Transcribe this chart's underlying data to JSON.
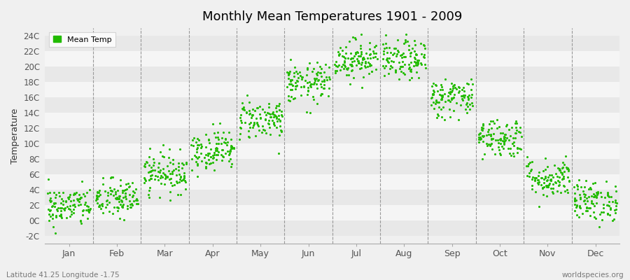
{
  "title": "Monthly Mean Temperatures 1901 - 2009",
  "ylabel": "Temperature",
  "footer_left": "Latitude 41.25 Longitude -1.75",
  "footer_right": "worldspecies.org",
  "legend_label": "Mean Temp",
  "dot_color": "#22bb00",
  "bg_color": "#f0f0f0",
  "plot_bg_color": "#f0f0f0",
  "band_color_light": "#f5f5f5",
  "band_color_dark": "#e8e8e8",
  "ylim": [
    -3.0,
    25.0
  ],
  "yticks": [
    -2,
    0,
    2,
    4,
    6,
    8,
    10,
    12,
    14,
    16,
    18,
    20,
    22,
    24
  ],
  "ytick_labels": [
    "-2C",
    "0C",
    "2C",
    "4C",
    "6C",
    "8C",
    "10C",
    "12C",
    "14C",
    "16C",
    "18C",
    "20C",
    "22C",
    "24C"
  ],
  "month_labels": [
    "Jan",
    "Feb",
    "Mar",
    "Apr",
    "May",
    "Jun",
    "Jul",
    "Aug",
    "Sep",
    "Oct",
    "Nov",
    "Dec"
  ],
  "monthly_means": [
    1.8,
    2.8,
    6.2,
    9.2,
    13.2,
    17.8,
    21.0,
    20.8,
    16.0,
    10.8,
    5.5,
    2.5
  ],
  "monthly_stds": [
    1.3,
    1.3,
    1.3,
    1.3,
    1.3,
    1.3,
    1.3,
    1.3,
    1.3,
    1.3,
    1.3,
    1.3
  ],
  "n_years": 109,
  "random_seed": 42
}
